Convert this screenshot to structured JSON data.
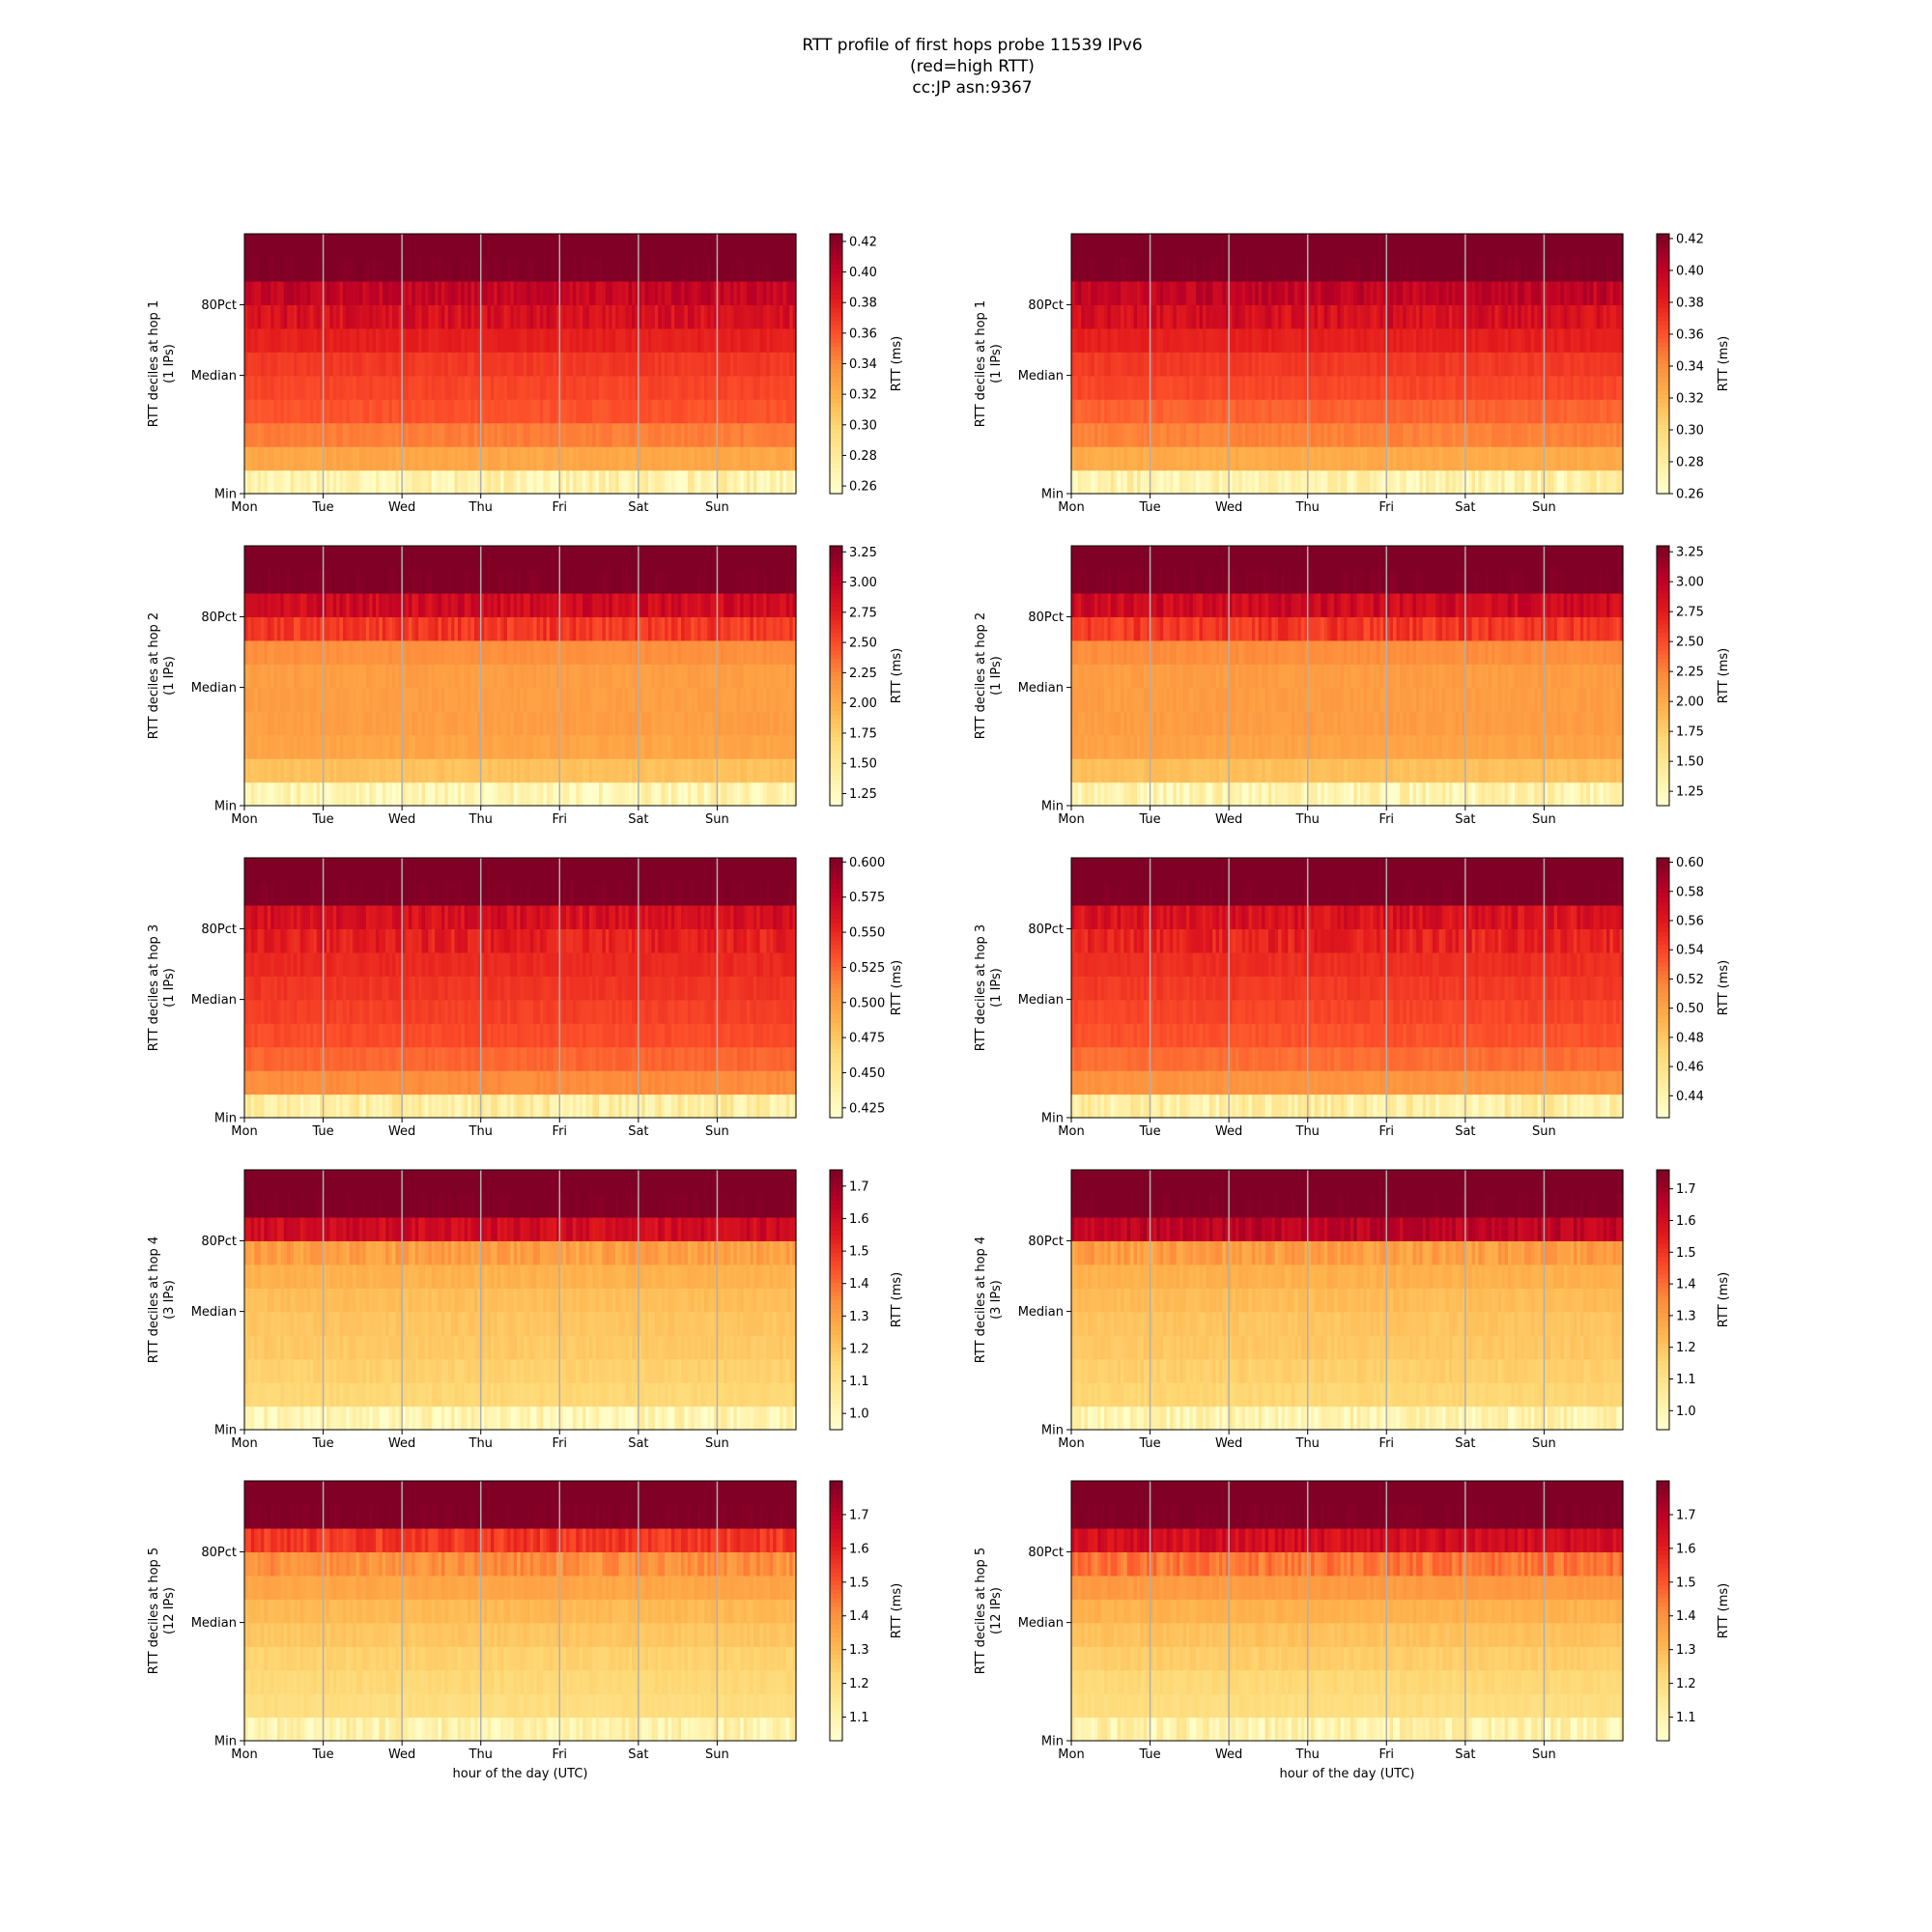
{
  "figure": {
    "title_lines": [
      "RTT profile of first hops probe 11539 IPv6",
      "(red=high RTT)",
      "cc:JP asn:9367"
    ],
    "xlabel": "hour of the day (UTC)",
    "colorbar_label": "RTT (ms)",
    "colormap": [
      "#ffffcc",
      "#ffeda0",
      "#fed976",
      "#feb24c",
      "#fd8d3c",
      "#fc4e2a",
      "#e31a1c",
      "#bd0026",
      "#800026"
    ]
  },
  "chart_data": [
    {
      "type": "heatmap",
      "hop": 1,
      "column": "left",
      "ylabel": "RTT deciles at hop 1",
      "ylabel2": "(1 IPs)",
      "x_ticks": [
        "Mon",
        "Tue",
        "Wed",
        "Thu",
        "Fri",
        "Sat",
        "Sun"
      ],
      "y_ticks": [
        "Min",
        "Median",
        "80Pct"
      ],
      "clim": [
        0.255,
        0.425
      ],
      "cbar_ticks": [
        "0.26",
        "0.28",
        "0.30",
        "0.32",
        "0.34",
        "0.36",
        "0.38",
        "0.40",
        "0.42"
      ],
      "decile_levels": [
        0.27,
        0.325,
        0.345,
        0.36,
        0.365,
        0.37,
        0.38,
        0.39,
        0.4,
        0.425
      ],
      "grid": true
    },
    {
      "type": "heatmap",
      "hop": 1,
      "column": "right",
      "ylabel": "RTT deciles at hop 1",
      "ylabel2": "(1 IPs)",
      "x_ticks": [
        "Mon",
        "Tue",
        "Wed",
        "Thu",
        "Fri",
        "Sat",
        "Sun"
      ],
      "y_ticks": [
        "Min",
        "Median",
        "80Pct"
      ],
      "clim": [
        0.26,
        0.423
      ],
      "cbar_ticks": [
        "0.26",
        "0.28",
        "0.30",
        "0.32",
        "0.34",
        "0.36",
        "0.38",
        "0.40",
        "0.42"
      ],
      "decile_levels": [
        0.275,
        0.325,
        0.345,
        0.355,
        0.365,
        0.37,
        0.38,
        0.39,
        0.4,
        0.423
      ],
      "grid": true
    },
    {
      "type": "heatmap",
      "hop": 2,
      "column": "left",
      "ylabel": "RTT deciles at hop 2",
      "ylabel2": "(1 IPs)",
      "x_ticks": [
        "Mon",
        "Tue",
        "Wed",
        "Thu",
        "Fri",
        "Sat",
        "Sun"
      ],
      "y_ticks": [
        "Min",
        "Median",
        "80Pct"
      ],
      "clim": [
        1.15,
        3.3
      ],
      "cbar_ticks": [
        "1.25",
        "1.50",
        "1.75",
        "2.00",
        "2.25",
        "2.50",
        "2.75",
        "3.00",
        "3.25"
      ],
      "decile_levels": [
        1.3,
        1.85,
        2.05,
        2.1,
        2.1,
        2.1,
        2.2,
        2.6,
        2.9,
        3.3
      ],
      "grid": true
    },
    {
      "type": "heatmap",
      "hop": 2,
      "column": "right",
      "ylabel": "RTT deciles at hop 2",
      "ylabel2": "(1 IPs)",
      "x_ticks": [
        "Mon",
        "Tue",
        "Wed",
        "Thu",
        "Fri",
        "Sat",
        "Sun"
      ],
      "y_ticks": [
        "Min",
        "Median",
        "80Pct"
      ],
      "clim": [
        1.13,
        3.3
      ],
      "cbar_ticks": [
        "1.25",
        "1.50",
        "1.75",
        "2.00",
        "2.25",
        "2.50",
        "2.75",
        "3.00",
        "3.25"
      ],
      "decile_levels": [
        1.3,
        1.85,
        2.05,
        2.1,
        2.1,
        2.1,
        2.2,
        2.6,
        2.9,
        3.3
      ],
      "grid": true
    },
    {
      "type": "heatmap",
      "hop": 3,
      "column": "left",
      "ylabel": "RTT deciles at hop 3",
      "ylabel2": "(1 IPs)",
      "x_ticks": [
        "Mon",
        "Tue",
        "Wed",
        "Thu",
        "Fri",
        "Sat",
        "Sun"
      ],
      "y_ticks": [
        "Min",
        "Median",
        "80Pct"
      ],
      "clim": [
        0.418,
        0.603
      ],
      "cbar_ticks": [
        "0.425",
        "0.450",
        "0.475",
        "0.500",
        "0.525",
        "0.550",
        "0.575",
        "0.600"
      ],
      "decile_levels": [
        0.44,
        0.51,
        0.525,
        0.535,
        0.54,
        0.545,
        0.55,
        0.555,
        0.565,
        0.603
      ],
      "grid": true
    },
    {
      "type": "heatmap",
      "hop": 3,
      "column": "right",
      "ylabel": "RTT deciles at hop 3",
      "ylabel2": "(1 IPs)",
      "x_ticks": [
        "Mon",
        "Tue",
        "Wed",
        "Thu",
        "Fri",
        "Sat",
        "Sun"
      ],
      "y_ticks": [
        "Min",
        "Median",
        "80Pct"
      ],
      "clim": [
        0.425,
        0.603
      ],
      "cbar_ticks": [
        "0.44",
        "0.46",
        "0.48",
        "0.50",
        "0.52",
        "0.54",
        "0.56",
        "0.58",
        "0.60"
      ],
      "decile_levels": [
        0.445,
        0.51,
        0.525,
        0.535,
        0.54,
        0.545,
        0.55,
        0.555,
        0.565,
        0.603
      ],
      "grid": true
    },
    {
      "type": "heatmap",
      "hop": 4,
      "column": "left",
      "ylabel": "RTT deciles at hop 4",
      "ylabel2": "(3 IPs)",
      "x_ticks": [
        "Mon",
        "Tue",
        "Wed",
        "Thu",
        "Fri",
        "Sat",
        "Sun"
      ],
      "y_ticks": [
        "Min",
        "Median",
        "80Pct"
      ],
      "clim": [
        0.95,
        1.75
      ],
      "cbar_ticks": [
        "1.0",
        "1.1",
        "1.2",
        "1.3",
        "1.4",
        "1.5",
        "1.6",
        "1.7"
      ],
      "decile_levels": [
        1.0,
        1.15,
        1.17,
        1.19,
        1.2,
        1.22,
        1.25,
        1.3,
        1.6,
        1.75
      ],
      "grid": true
    },
    {
      "type": "heatmap",
      "hop": 4,
      "column": "right",
      "ylabel": "RTT deciles at hop 4",
      "ylabel2": "(3 IPs)",
      "x_ticks": [
        "Mon",
        "Tue",
        "Wed",
        "Thu",
        "Fri",
        "Sat",
        "Sun"
      ],
      "y_ticks": [
        "Min",
        "Median",
        "80Pct"
      ],
      "clim": [
        0.94,
        1.76
      ],
      "cbar_ticks": [
        "1.0",
        "1.1",
        "1.2",
        "1.3",
        "1.4",
        "1.5",
        "1.6",
        "1.7"
      ],
      "decile_levels": [
        1.0,
        1.15,
        1.17,
        1.19,
        1.2,
        1.22,
        1.25,
        1.3,
        1.65,
        1.76
      ],
      "grid": true
    },
    {
      "type": "heatmap",
      "hop": 5,
      "column": "left",
      "ylabel": "RTT deciles at hop 5",
      "ylabel2": "(12 IPs)",
      "x_ticks": [
        "Mon",
        "Tue",
        "Wed",
        "Thu",
        "Fri",
        "Sat",
        "Sun"
      ],
      "y_ticks": [
        "Min",
        "Median",
        "80Pct"
      ],
      "clim": [
        1.03,
        1.8
      ],
      "cbar_ticks": [
        "1.1",
        "1.2",
        "1.3",
        "1.4",
        "1.5",
        "1.6",
        "1.7"
      ],
      "decile_levels": [
        1.1,
        1.2,
        1.22,
        1.24,
        1.27,
        1.3,
        1.35,
        1.4,
        1.55,
        1.8
      ],
      "grid": true
    },
    {
      "type": "heatmap",
      "hop": 5,
      "column": "right",
      "ylabel": "RTT deciles at hop 5",
      "ylabel2": "(12 IPs)",
      "x_ticks": [
        "Mon",
        "Tue",
        "Wed",
        "Thu",
        "Fri",
        "Sat",
        "Sun"
      ],
      "y_ticks": [
        "Min",
        "Median",
        "80Pct"
      ],
      "clim": [
        1.03,
        1.8
      ],
      "cbar_ticks": [
        "1.1",
        "1.2",
        "1.3",
        "1.4",
        "1.5",
        "1.6",
        "1.7"
      ],
      "decile_levels": [
        1.1,
        1.2,
        1.22,
        1.25,
        1.28,
        1.32,
        1.38,
        1.45,
        1.65,
        1.8
      ],
      "grid": true
    }
  ]
}
